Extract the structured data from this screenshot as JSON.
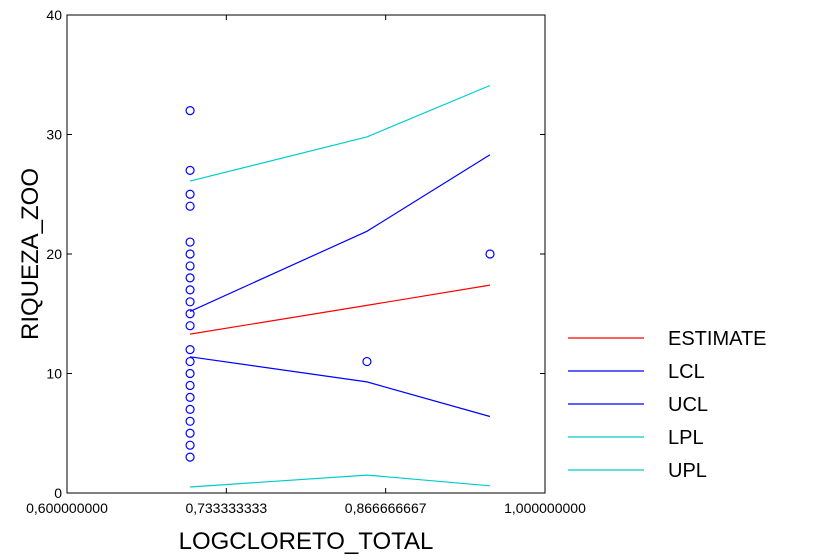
{
  "chart_data": {
    "type": "scatter",
    "title": "",
    "xlabel": "LOGCLORETO_TOTAL",
    "ylabel": "RIQUEZA_ZOO",
    "xlim": [
      0.6,
      1.0
    ],
    "ylim": [
      0,
      40
    ],
    "x_ticks": [
      0.6,
      0.733333333,
      0.866666667,
      1.0
    ],
    "x_tick_labels": [
      "0,600000000",
      "0,733333333",
      "0,866666667",
      "1,000000000"
    ],
    "y_ticks": [
      0,
      10,
      20,
      30,
      40
    ],
    "y_tick_labels": [
      "0",
      "10",
      "20",
      "30",
      "40"
    ],
    "grid": false,
    "legend_position": "right",
    "points": {
      "marker": "open-circle",
      "color": "#0000ff",
      "data": [
        [
          0.703,
          32
        ],
        [
          0.703,
          27
        ],
        [
          0.703,
          25
        ],
        [
          0.703,
          24
        ],
        [
          0.703,
          21
        ],
        [
          0.703,
          20
        ],
        [
          0.703,
          19
        ],
        [
          0.703,
          18
        ],
        [
          0.703,
          17
        ],
        [
          0.703,
          16
        ],
        [
          0.703,
          15
        ],
        [
          0.703,
          14
        ],
        [
          0.703,
          12
        ],
        [
          0.703,
          11
        ],
        [
          0.703,
          10
        ],
        [
          0.703,
          9
        ],
        [
          0.703,
          8
        ],
        [
          0.703,
          7
        ],
        [
          0.703,
          6
        ],
        [
          0.703,
          5
        ],
        [
          0.703,
          4
        ],
        [
          0.703,
          3
        ],
        [
          0.851,
          11
        ],
        [
          0.954,
          20
        ]
      ]
    },
    "series": [
      {
        "name": "ESTIMATE",
        "color": "#ff0000",
        "x": [
          0.703,
          0.851,
          0.954
        ],
        "y": [
          13.3,
          15.7,
          17.4
        ]
      },
      {
        "name": "LCL",
        "color": "#0000ff",
        "x": [
          0.703,
          0.851,
          0.954
        ],
        "y": [
          11.4,
          9.3,
          6.4
        ]
      },
      {
        "name": "UCL",
        "color": "#0000ff",
        "x": [
          0.703,
          0.851,
          0.954
        ],
        "y": [
          15.2,
          21.9,
          28.3
        ]
      },
      {
        "name": "LPL",
        "color": "#00cccc",
        "x": [
          0.703,
          0.851,
          0.954
        ],
        "y": [
          0.5,
          1.5,
          0.6
        ]
      },
      {
        "name": "UPL",
        "color": "#00cccc",
        "x": [
          0.703,
          0.851,
          0.954
        ],
        "y": [
          26.1,
          29.8,
          34.1
        ]
      }
    ]
  }
}
